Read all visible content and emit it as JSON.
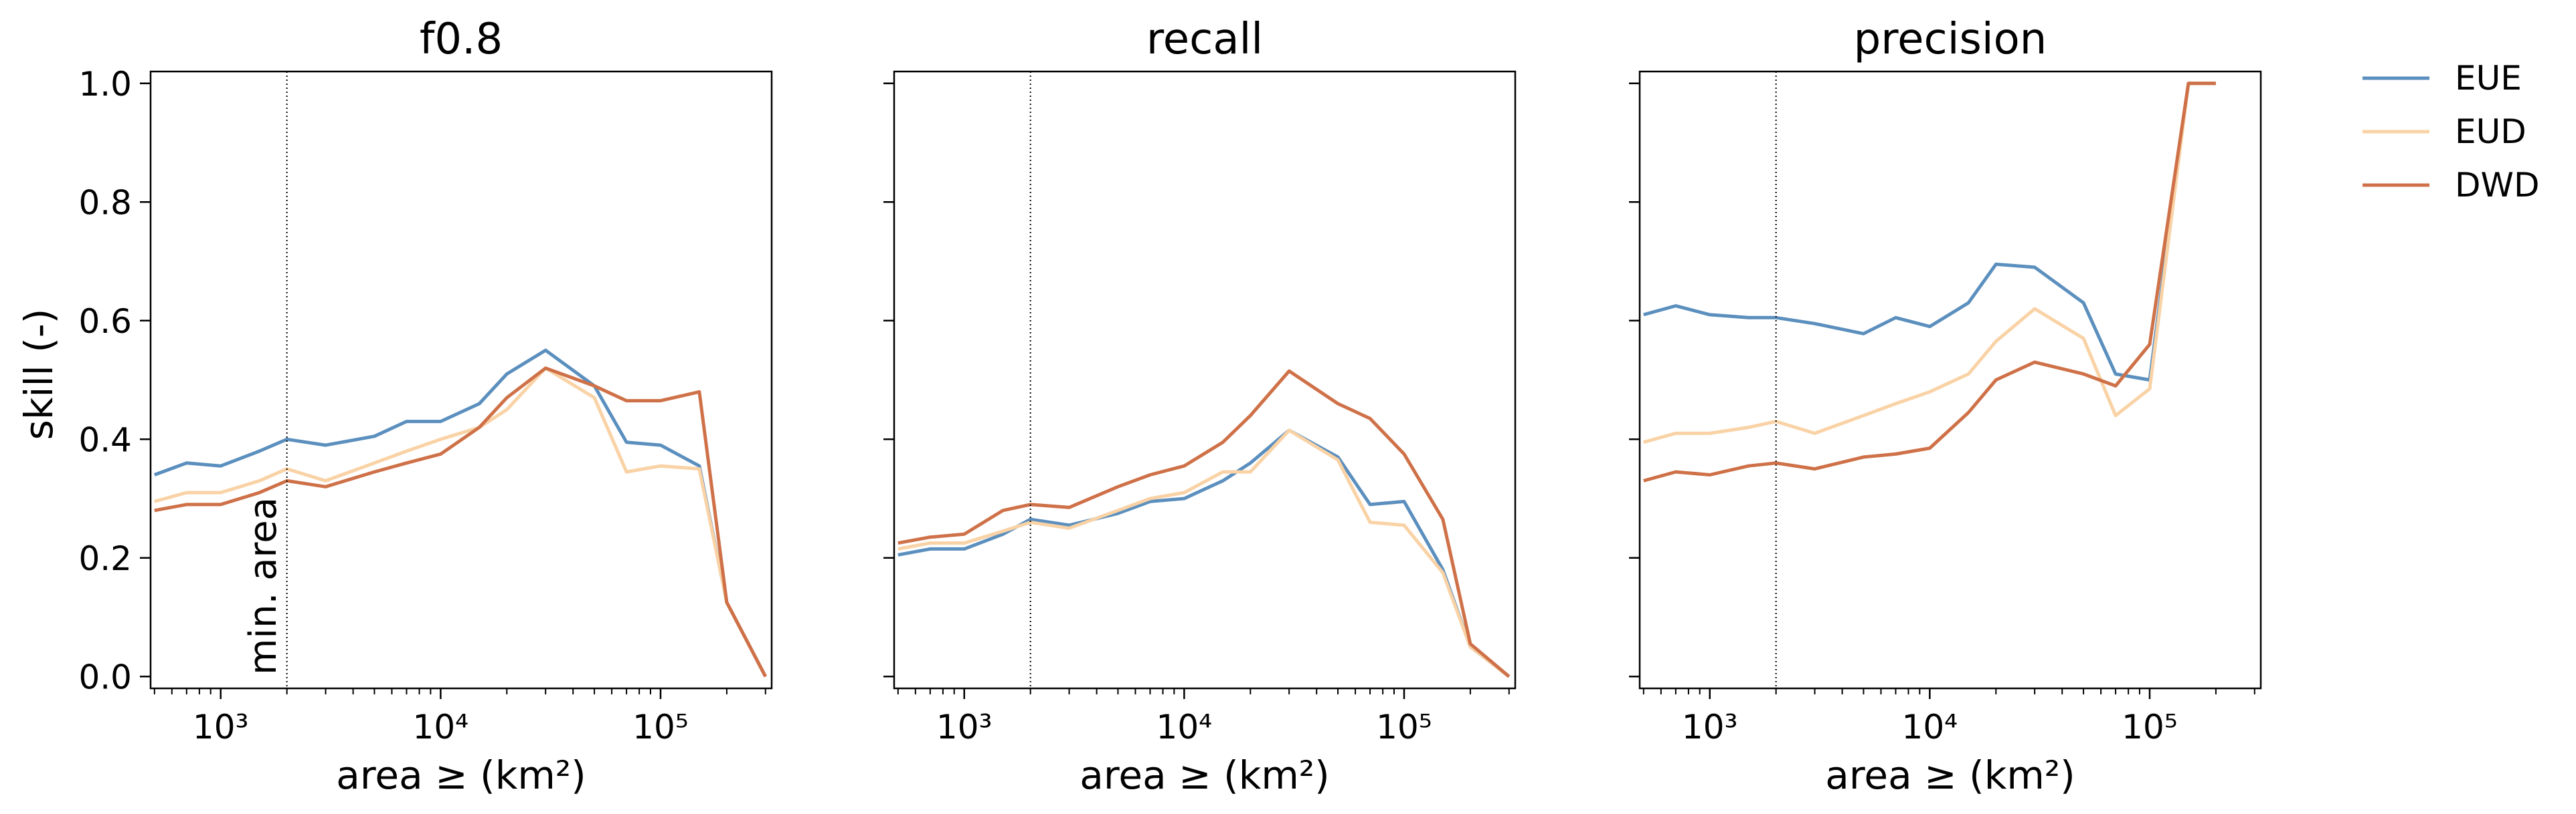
{
  "chart_data": [
    {
      "type": "line",
      "title": "f0.8",
      "xlabel": "area ≥ (km²)",
      "ylabel": "skill (-)",
      "xscale": "log",
      "xlim": [
        480,
        320000
      ],
      "ylim": [
        -0.02,
        1.02
      ],
      "x_ticks": [
        "10³",
        "10⁴",
        "10⁵"
      ],
      "y_ticks": [
        "0.0",
        "0.2",
        "0.4",
        "0.6",
        "0.8",
        "1.0"
      ],
      "vline": {
        "x": 2000,
        "label": "min. area"
      },
      "series": [
        {
          "name": "EUE",
          "color": "#5b8fbe",
          "x": [
            500,
            700,
            1000,
            1500,
            2000,
            3000,
            5000,
            7000,
            10000,
            15000,
            20000,
            30000,
            50000,
            70000,
            100000,
            150000,
            200000,
            300000
          ],
          "y": [
            0.34,
            0.36,
            0.355,
            0.38,
            0.4,
            0.39,
            0.405,
            0.43,
            0.43,
            0.46,
            0.51,
            0.55,
            0.49,
            0.395,
            0.39,
            0.355,
            0.125,
            0.0
          ]
        },
        {
          "name": "EUD",
          "color": "#f9d2a5",
          "x": [
            500,
            700,
            1000,
            1500,
            2000,
            3000,
            5000,
            7000,
            10000,
            15000,
            20000,
            30000,
            50000,
            70000,
            100000,
            150000,
            200000,
            300000
          ],
          "y": [
            0.295,
            0.31,
            0.31,
            0.33,
            0.35,
            0.33,
            0.36,
            0.38,
            0.4,
            0.42,
            0.45,
            0.52,
            0.47,
            0.345,
            0.355,
            0.35,
            0.125,
            0.0
          ]
        },
        {
          "name": "DWD",
          "color": "#cf7148",
          "x": [
            500,
            700,
            1000,
            1500,
            2000,
            3000,
            5000,
            7000,
            10000,
            15000,
            20000,
            30000,
            50000,
            70000,
            100000,
            150000,
            200000,
            300000
          ],
          "y": [
            0.28,
            0.29,
            0.29,
            0.31,
            0.33,
            0.32,
            0.345,
            0.36,
            0.375,
            0.42,
            0.47,
            0.52,
            0.49,
            0.465,
            0.465,
            0.48,
            0.125,
            0.0
          ]
        }
      ]
    },
    {
      "type": "line",
      "title": "recall",
      "xlabel": "area ≥ (km²)",
      "ylabel": "",
      "xscale": "log",
      "xlim": [
        480,
        320000
      ],
      "ylim": [
        -0.02,
        1.02
      ],
      "x_ticks": [
        "10³",
        "10⁴",
        "10⁵"
      ],
      "y_ticks": [],
      "vline": {
        "x": 2000,
        "label": ""
      },
      "series": [
        {
          "name": "EUE",
          "color": "#5b8fbe",
          "x": [
            500,
            700,
            1000,
            1500,
            2000,
            3000,
            5000,
            7000,
            10000,
            15000,
            20000,
            30000,
            50000,
            70000,
            100000,
            150000,
            200000,
            300000
          ],
          "y": [
            0.205,
            0.215,
            0.215,
            0.24,
            0.265,
            0.255,
            0.275,
            0.295,
            0.3,
            0.33,
            0.36,
            0.415,
            0.37,
            0.29,
            0.295,
            0.18,
            0.05,
            0.0
          ]
        },
        {
          "name": "EUD",
          "color": "#f9d2a5",
          "x": [
            500,
            700,
            1000,
            1500,
            2000,
            3000,
            5000,
            7000,
            10000,
            15000,
            20000,
            30000,
            50000,
            70000,
            100000,
            150000,
            200000,
            300000
          ],
          "y": [
            0.215,
            0.225,
            0.225,
            0.245,
            0.26,
            0.25,
            0.28,
            0.3,
            0.31,
            0.345,
            0.345,
            0.415,
            0.365,
            0.26,
            0.255,
            0.175,
            0.05,
            0.0
          ]
        },
        {
          "name": "DWD",
          "color": "#cf7148",
          "x": [
            500,
            700,
            1000,
            1500,
            2000,
            3000,
            5000,
            7000,
            10000,
            15000,
            20000,
            30000,
            50000,
            70000,
            100000,
            150000,
            200000,
            300000
          ],
          "y": [
            0.225,
            0.235,
            0.24,
            0.28,
            0.29,
            0.285,
            0.32,
            0.34,
            0.355,
            0.395,
            0.44,
            0.515,
            0.46,
            0.435,
            0.375,
            0.265,
            0.055,
            0.0
          ]
        }
      ]
    },
    {
      "type": "line",
      "title": "precision",
      "xlabel": "area ≥ (km²)",
      "ylabel": "",
      "xscale": "log",
      "xlim": [
        480,
        320000
      ],
      "ylim": [
        -0.02,
        1.02
      ],
      "x_ticks": [
        "10³",
        "10⁴",
        "10⁵"
      ],
      "y_ticks": [],
      "vline": {
        "x": 2000,
        "label": ""
      },
      "series": [
        {
          "name": "EUE",
          "color": "#5b8fbe",
          "x": [
            500,
            700,
            1000,
            1500,
            2000,
            3000,
            5000,
            7000,
            10000,
            15000,
            20000,
            30000,
            50000,
            70000,
            100000,
            150000,
            200000
          ],
          "y": [
            0.61,
            0.625,
            0.61,
            0.605,
            0.605,
            0.595,
            0.578,
            0.605,
            0.59,
            0.63,
            0.695,
            0.69,
            0.63,
            0.51,
            0.5,
            1.0,
            1.0
          ]
        },
        {
          "name": "EUD",
          "color": "#f9d2a5",
          "x": [
            500,
            700,
            1000,
            1500,
            2000,
            3000,
            5000,
            7000,
            10000,
            15000,
            20000,
            30000,
            50000,
            70000,
            100000,
            150000,
            200000
          ],
          "y": [
            0.395,
            0.41,
            0.41,
            0.42,
            0.43,
            0.41,
            0.44,
            0.46,
            0.48,
            0.51,
            0.565,
            0.62,
            0.57,
            0.44,
            0.485,
            1.0,
            1.0
          ]
        },
        {
          "name": "DWD",
          "color": "#cf7148",
          "x": [
            500,
            700,
            1000,
            1500,
            2000,
            3000,
            5000,
            7000,
            10000,
            15000,
            20000,
            30000,
            50000,
            70000,
            100000,
            150000,
            200000
          ],
          "y": [
            0.33,
            0.345,
            0.34,
            0.355,
            0.36,
            0.35,
            0.37,
            0.375,
            0.385,
            0.445,
            0.5,
            0.53,
            0.51,
            0.49,
            0.56,
            1.0,
            1.0
          ]
        }
      ]
    }
  ],
  "legend": {
    "placement": "outside-right",
    "items": [
      {
        "label": "EUE",
        "color": "#5b8fbe"
      },
      {
        "label": "EUD",
        "color": "#f9d2a5"
      },
      {
        "label": "DWD",
        "color": "#cf7148"
      }
    ]
  }
}
